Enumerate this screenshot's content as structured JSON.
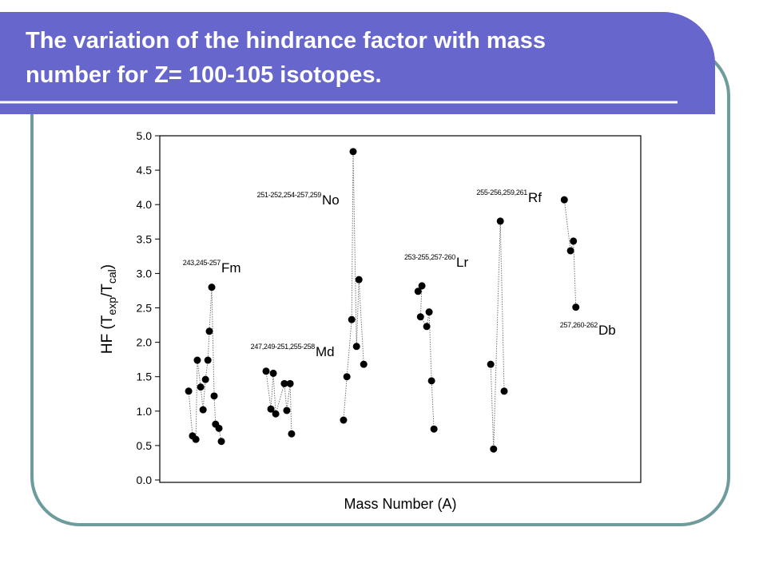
{
  "title": "The variation of the hindrance factor with mass number for Z= 100-105 isotopes.",
  "chart_data": {
    "type": "scatter",
    "x_label": "Mass Number (A)",
    "y_label": [
      "HF (T",
      "exp",
      "/T",
      "cal",
      ")"
    ],
    "xlim": [
      0,
      100
    ],
    "ylim": [
      0,
      5
    ],
    "yticks": [
      {
        "value": 0,
        "label": "0.0"
      },
      0.5,
      {
        "value": 1,
        "label": "1.0"
      },
      1.5,
      {
        "value": 2,
        "label": "2.0"
      },
      2.5,
      {
        "value": 3,
        "label": "3.0"
      },
      3.5,
      {
        "value": 4,
        "label": "4.0"
      },
      4.5,
      {
        "value": 5,
        "label": "5.0"
      }
    ],
    "series": [
      {
        "name": "Fm",
        "mass_label": "243,245-257",
        "color": "#000000",
        "x": [
          6.0,
          6.8,
          7.5,
          7.8,
          8.5,
          9.0,
          9.5,
          10.0,
          10.3,
          10.8,
          11.3,
          11.6,
          12.3,
          12.8
        ],
        "values": [
          1.29,
          0.64,
          0.59,
          1.74,
          1.35,
          1.02,
          1.46,
          1.74,
          2.16,
          2.8,
          1.22,
          0.81,
          0.75,
          0.56
        ]
      },
      {
        "name": "Md",
        "mass_label": "247,249-251,255-258",
        "color": "#000000",
        "x": [
          22.1,
          23.1,
          23.6,
          24.1,
          25.9,
          26.4,
          27.1,
          27.4
        ],
        "values": [
          1.58,
          1.03,
          1.55,
          0.96,
          1.4,
          1.01,
          1.4,
          0.67
        ]
      },
      {
        "name": "No",
        "mass_label": "251-252,254-257,259",
        "color": "#000000",
        "x": [
          38.2,
          38.9,
          39.9,
          40.2,
          40.9,
          41.4,
          42.4
        ],
        "values": [
          0.87,
          1.5,
          2.33,
          4.77,
          1.94,
          2.91,
          1.68
        ]
      },
      {
        "name": "Lr",
        "mass_label": "253-255,257-260",
        "color": "#000000",
        "x": [
          53.7,
          54.5,
          54.2,
          55.5,
          56.0,
          56.5,
          57.0
        ],
        "values": [
          2.74,
          2.82,
          2.37,
          2.23,
          2.44,
          1.44,
          0.74
        ]
      },
      {
        "name": "Rf",
        "mass_label": "255-256,259,261",
        "color": "#000000",
        "x": [
          68.8,
          69.4,
          70.8,
          71.6
        ],
        "values": [
          1.68,
          0.45,
          3.76,
          1.29
        ]
      },
      {
        "name": "Db",
        "mass_label": "257,260-262",
        "color": "#000000",
        "x": [
          84.1,
          85.4,
          86.0,
          86.5
        ],
        "values": [
          4.07,
          3.33,
          3.47,
          2.51
        ]
      }
    ]
  }
}
